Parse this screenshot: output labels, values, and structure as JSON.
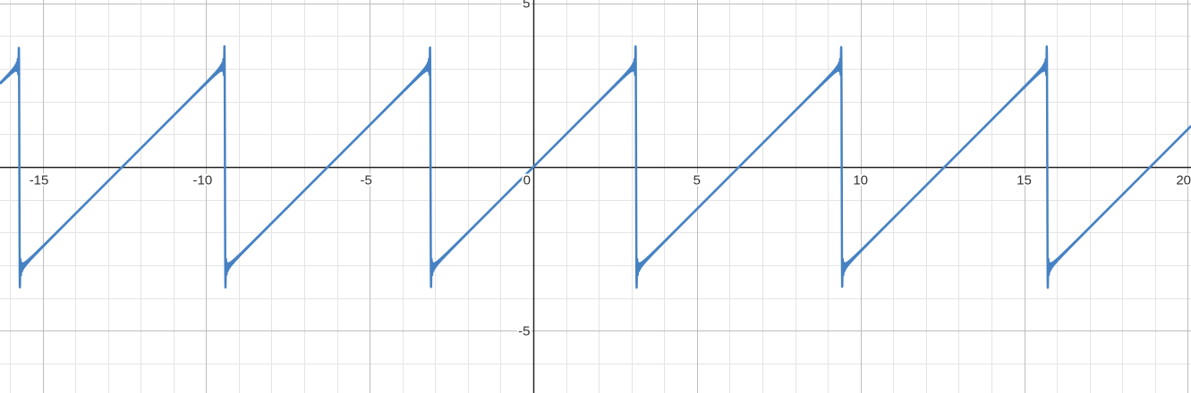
{
  "chart_data": {
    "type": "line",
    "title": "",
    "xlabel": "",
    "ylabel": "",
    "xlim": [
      -16.3,
      20.1
    ],
    "ylim": [
      -6.9,
      5.1
    ],
    "grid": true,
    "grid_minor_step": 1,
    "grid_major_step": 5,
    "x_ticks": [
      {
        "value": -15,
        "label": "-15"
      },
      {
        "value": -10,
        "label": "-10"
      },
      {
        "value": -5,
        "label": "-5"
      },
      {
        "value": 0,
        "label": "0"
      },
      {
        "value": 5,
        "label": "5"
      },
      {
        "value": 10,
        "label": "10"
      },
      {
        "value": 15,
        "label": "15"
      },
      {
        "value": 20,
        "label": "20"
      }
    ],
    "y_ticks": [
      {
        "value": 5,
        "label": "5"
      },
      {
        "value": -5,
        "label": "-5"
      }
    ],
    "series": [
      {
        "color": "#4682c3",
        "period": 6.283,
        "amplitude": 3.14,
        "overshoot": 0.6,
        "shape": "sawtooth (Fourier partial sum with Gibbs ringing)",
        "points": [
          {
            "x": -16.3,
            "y": 2.36
          },
          {
            "x": -15.71,
            "y": 2.95
          },
          {
            "x": -15.69,
            "y": 3.66
          },
          {
            "x": -15.65,
            "y": -3.66
          },
          {
            "x": -15.63,
            "y": -2.95
          },
          {
            "x": -9.43,
            "y": 2.95
          },
          {
            "x": -9.41,
            "y": 3.66
          },
          {
            "x": -9.37,
            "y": -3.66
          },
          {
            "x": -9.35,
            "y": -2.95
          },
          {
            "x": -3.15,
            "y": 2.95
          },
          {
            "x": -3.12,
            "y": 3.66
          },
          {
            "x": -3.08,
            "y": -3.66
          },
          {
            "x": -3.06,
            "y": -2.95
          },
          {
            "x": 0,
            "y": 0
          },
          {
            "x": 3.12,
            "y": 2.95
          },
          {
            "x": 3.14,
            "y": 3.66
          },
          {
            "x": 3.18,
            "y": -3.66
          },
          {
            "x": 3.2,
            "y": -2.95
          },
          {
            "x": 9.4,
            "y": 2.95
          },
          {
            "x": 9.42,
            "y": 3.66
          },
          {
            "x": 9.46,
            "y": -3.66
          },
          {
            "x": 9.48,
            "y": -2.95
          },
          {
            "x": 15.68,
            "y": 2.95
          },
          {
            "x": 15.7,
            "y": 3.66
          },
          {
            "x": 15.74,
            "y": -3.66
          },
          {
            "x": 15.76,
            "y": -2.95
          },
          {
            "x": 20.1,
            "y": 1.12
          }
        ]
      }
    ]
  },
  "colors": {
    "background": "#ffffff",
    "minor_grid": "#e4e4e4",
    "major_grid": "#bdbdbd",
    "axis": "#222222",
    "curve": "#4682c3"
  }
}
